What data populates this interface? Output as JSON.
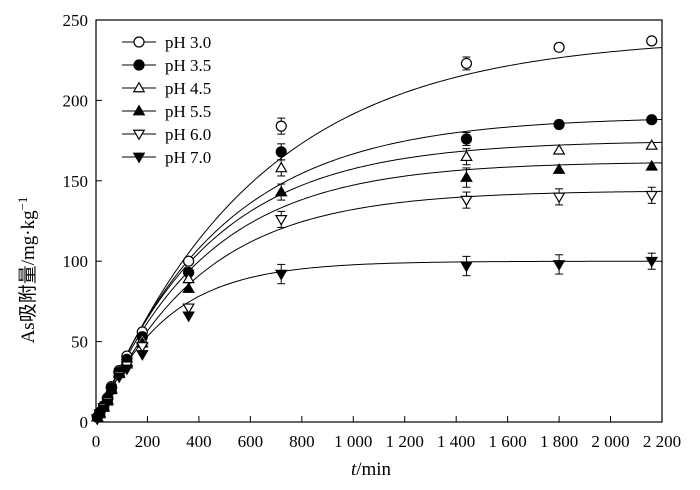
{
  "chart_data": {
    "type": "scatter",
    "title": "",
    "xlabel": {
      "italic": "t",
      "rest": "/min"
    },
    "ylabel": {
      "main": "As吸附量/mg·kg",
      "sup": "−1"
    },
    "xlim": [
      0,
      2200
    ],
    "ylim": [
      0,
      250
    ],
    "xticks": [
      0,
      200,
      400,
      600,
      800,
      1000,
      1200,
      1400,
      1600,
      1800,
      2000,
      2200
    ],
    "xtick_labels": [
      "0",
      "200",
      "400",
      "600",
      "800",
      "1 000",
      "1 200",
      "1 400",
      "1 600",
      "1 800",
      "2 000",
      "2 200"
    ],
    "yticks": [
      0,
      50,
      100,
      150,
      200,
      250
    ],
    "ytick_labels": [
      "0",
      "50",
      "100",
      "150",
      "200",
      "250"
    ],
    "grid": false,
    "legend_position": "top-left",
    "x": [
      5,
      15,
      30,
      45,
      60,
      90,
      120,
      180,
      360,
      720,
      1440,
      1800,
      2160
    ],
    "series": [
      {
        "name": "pH 3.0",
        "marker": "circle-open",
        "qe": 240,
        "k": 0.0016,
        "values": [
          3,
          6,
          10,
          15,
          22,
          32,
          41,
          56,
          100,
          184,
          223,
          233,
          237
        ],
        "errors": [
          0,
          0,
          0,
          0,
          0,
          0,
          0,
          0,
          0,
          5,
          4,
          0,
          0
        ]
      },
      {
        "name": "pH 3.5",
        "marker": "circle-filled",
        "qe": 190,
        "k": 0.0021,
        "values": [
          3,
          6,
          10,
          14,
          21,
          31,
          39,
          53,
          93,
          168,
          176,
          185,
          188
        ],
        "errors": [
          0,
          0,
          0,
          0,
          0,
          0,
          0,
          0,
          0,
          5,
          4,
          0,
          0
        ]
      },
      {
        "name": "pH 4.5",
        "marker": "triangle-up-open",
        "qe": 175,
        "k": 0.0023,
        "values": [
          3,
          6,
          10,
          14,
          21,
          31,
          37,
          51,
          89,
          158,
          165,
          169,
          172
        ],
        "errors": [
          0,
          0,
          0,
          0,
          0,
          0,
          0,
          0,
          0,
          5,
          5,
          0,
          0
        ]
      },
      {
        "name": "pH 5.5",
        "marker": "triangle-up-filled",
        "qe": 162,
        "k": 0.0024,
        "values": [
          3,
          5,
          9,
          13,
          20,
          30,
          36,
          49,
          83,
          143,
          152,
          157,
          159
        ],
        "errors": [
          0,
          0,
          0,
          0,
          0,
          0,
          0,
          0,
          0,
          5,
          6,
          0,
          0
        ]
      },
      {
        "name": "pH 6.0",
        "marker": "triangle-down-open",
        "qe": 144,
        "k": 0.0025,
        "values": [
          2,
          5,
          9,
          13,
          19,
          29,
          35,
          47,
          71,
          126,
          138,
          140,
          141
        ],
        "errors": [
          0,
          0,
          0,
          0,
          0,
          0,
          0,
          0,
          0,
          5,
          5,
          5,
          5
        ]
      },
      {
        "name": "pH 7.0",
        "marker": "triangle-down-filled",
        "qe": 100,
        "k": 0.0038,
        "values": [
          2,
          5,
          8,
          12,
          19,
          28,
          33,
          42,
          66,
          92,
          97,
          98,
          100
        ],
        "errors": [
          0,
          0,
          0,
          0,
          0,
          0,
          0,
          0,
          0,
          6,
          6,
          6,
          5
        ]
      }
    ]
  }
}
